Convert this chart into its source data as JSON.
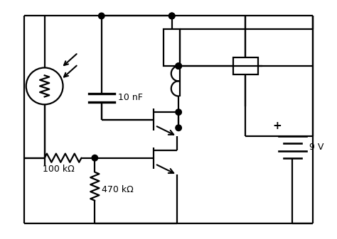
{
  "bg_color": "#ffffff",
  "line_color": "#000000",
  "line_width": 1.6,
  "fig_width": 4.74,
  "fig_height": 3.37,
  "labels": {
    "cap": "10 nF",
    "r1": "100 kΩ",
    "r2": "470 kΩ",
    "batt": "9 V",
    "plus": "+"
  },
  "border": [
    0.5,
    0.3,
    9.5,
    6.7
  ]
}
